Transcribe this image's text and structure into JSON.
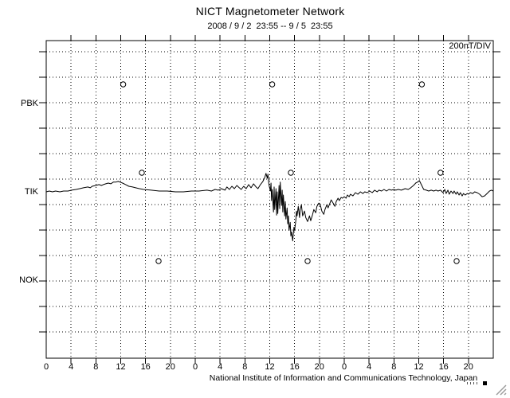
{
  "header": {
    "title": "NICT Magnetometer Network",
    "subtitle": "2008 / 9 / 2  23:55 -- 9 / 5  23:55"
  },
  "plot": {
    "scale_label": "200nT/DIV",
    "caption": "National Institute of Information and Communications Technology, Japan"
  },
  "chart_data": {
    "type": "line",
    "title": "NICT Magnetometer Network",
    "time_range_label": "2008 / 9 / 2  23:55 -- 9 / 5  23:55",
    "scale": {
      "nT_per_division": 200,
      "label": "200nT/DIV"
    },
    "grid": {
      "on": true,
      "style": "dotted"
    },
    "x_axis": {
      "unit": "hour",
      "hours_total": 72,
      "tick_interval_hours": 4,
      "num_days": 3,
      "day_tick_labels": [
        "0",
        "4",
        "8",
        "12",
        "16",
        "20"
      ]
    },
    "stations": [
      {
        "code": "PBK",
        "baseline_y": 130,
        "has_trace": false
      },
      {
        "code": "TIK",
        "baseline_y": 241,
        "has_trace": true
      },
      {
        "code": "NOK",
        "baseline_y": 352,
        "has_trace": false
      }
    ],
    "circle_markers": {
      "offset_nT": 150,
      "by_station": {
        "PBK": [
          12.4,
          36.4,
          60.5
        ],
        "TIK": [
          15.4,
          39.4,
          63.5
        ],
        "NOK": [
          18.1,
          42.1,
          66.1
        ]
      }
    },
    "series": [
      {
        "name": "TIK magnetic variation",
        "station": "TIK",
        "points_hour_nT": [
          [
            0,
            0
          ],
          [
            0.5,
            6
          ],
          [
            1,
            0
          ],
          [
            1.5,
            6
          ],
          [
            2.2,
            0
          ],
          [
            2.8,
            6
          ],
          [
            3.5,
            6
          ],
          [
            4.1,
            13
          ],
          [
            4.8,
            19
          ],
          [
            5.4,
            25
          ],
          [
            6,
            32
          ],
          [
            6.7,
            38
          ],
          [
            7.1,
            32
          ],
          [
            7.4,
            44
          ],
          [
            8,
            50
          ],
          [
            8.5,
            57
          ],
          [
            8.9,
            50
          ],
          [
            9.2,
            57
          ],
          [
            9.6,
            63
          ],
          [
            10,
            69
          ],
          [
            10.4,
            63
          ],
          [
            10.8,
            76
          ],
          [
            11.2,
            76
          ],
          [
            11.6,
            82
          ],
          [
            11.9,
            76
          ],
          [
            12.3,
            69
          ],
          [
            12.8,
            57
          ],
          [
            13.3,
            44
          ],
          [
            13.9,
            38
          ],
          [
            14.4,
            32
          ],
          [
            15,
            25
          ],
          [
            15.7,
            19
          ],
          [
            16.9,
            13
          ],
          [
            18.2,
            6
          ],
          [
            19.5,
            6
          ],
          [
            20.8,
            0
          ],
          [
            22.1,
            0
          ],
          [
            23.4,
            6
          ],
          [
            24.6,
            6
          ],
          [
            25.9,
            13
          ],
          [
            26.6,
            6
          ],
          [
            27.2,
            19
          ],
          [
            27.7,
            13
          ],
          [
            28.2,
            25
          ],
          [
            28.8,
            13
          ],
          [
            29.1,
            38
          ],
          [
            29.5,
            19
          ],
          [
            29.9,
            44
          ],
          [
            30.3,
            25
          ],
          [
            30.7,
            50
          ],
          [
            31.1,
            32
          ],
          [
            31.4,
            19
          ],
          [
            31.8,
            44
          ],
          [
            32.2,
            25
          ],
          [
            32.6,
            57
          ],
          [
            33,
            32
          ],
          [
            33.4,
            63
          ],
          [
            33.8,
            38
          ],
          [
            34.1,
            25
          ],
          [
            34.5,
            57
          ],
          [
            34.9,
            82
          ],
          [
            35.2,
            114
          ],
          [
            35.4,
            145
          ],
          [
            35.6,
            107
          ],
          [
            35.7,
            139
          ],
          [
            35.8,
            88
          ],
          [
            35.9,
            50
          ],
          [
            36.1,
            6
          ],
          [
            36.2,
            69
          ],
          [
            36.3,
            -69
          ],
          [
            36.4,
            19
          ],
          [
            36.6,
            -158
          ],
          [
            36.7,
            38
          ],
          [
            36.8,
            -139
          ],
          [
            37,
            25
          ],
          [
            37.1,
            -183
          ],
          [
            37.2,
            0
          ],
          [
            37.3,
            -170
          ],
          [
            37.5,
            50
          ],
          [
            37.6,
            -132
          ],
          [
            37.7,
            76
          ],
          [
            37.9,
            -107
          ],
          [
            38,
            13
          ],
          [
            38.1,
            -158
          ],
          [
            38.2,
            -25
          ],
          [
            38.4,
            -189
          ],
          [
            38.5,
            -76
          ],
          [
            38.6,
            -214
          ],
          [
            38.8,
            -126
          ],
          [
            38.9,
            -252
          ],
          [
            39,
            -189
          ],
          [
            39.1,
            -303
          ],
          [
            39.3,
            -240
          ],
          [
            39.4,
            -347
          ],
          [
            39.5,
            -315
          ],
          [
            39.7,
            -385
          ],
          [
            39.8,
            -328
          ],
          [
            39.9,
            -278
          ],
          [
            40,
            -303
          ],
          [
            40.2,
            -227
          ],
          [
            40.3,
            -151
          ],
          [
            40.4,
            -189
          ],
          [
            40.6,
            -114
          ],
          [
            40.7,
            -158
          ],
          [
            40.8,
            -202
          ],
          [
            40.9,
            -139
          ],
          [
            41.1,
            -101
          ],
          [
            41.2,
            -145
          ],
          [
            41.3,
            -189
          ],
          [
            41.6,
            -151
          ],
          [
            41.8,
            -202
          ],
          [
            42.1,
            -233
          ],
          [
            42.4,
            -189
          ],
          [
            42.6,
            -227
          ],
          [
            42.9,
            -177
          ],
          [
            43.1,
            -139
          ],
          [
            43.4,
            -164
          ],
          [
            43.6,
            -114
          ],
          [
            43.9,
            -88
          ],
          [
            44.2,
            -114
          ],
          [
            44.4,
            -151
          ],
          [
            44.7,
            -177
          ],
          [
            44.9,
            -139
          ],
          [
            45.2,
            -101
          ],
          [
            45.4,
            -126
          ],
          [
            45.7,
            -88
          ],
          [
            45.9,
            -63
          ],
          [
            46.2,
            -88
          ],
          [
            46.5,
            -114
          ],
          [
            46.7,
            -76
          ],
          [
            47,
            -50
          ],
          [
            47.2,
            -69
          ],
          [
            47.5,
            -44
          ],
          [
            47.7,
            -50
          ],
          [
            48,
            -38
          ],
          [
            48.3,
            -50
          ],
          [
            48.5,
            -25
          ],
          [
            48.8,
            -38
          ],
          [
            49,
            -19
          ],
          [
            49.4,
            -32
          ],
          [
            49.8,
            -6
          ],
          [
            50.2,
            -19
          ],
          [
            50.6,
            0
          ],
          [
            51,
            -13
          ],
          [
            51.3,
            0
          ],
          [
            51.7,
            -6
          ],
          [
            52.1,
            6
          ],
          [
            52.5,
            -6
          ],
          [
            52.9,
            13
          ],
          [
            53.3,
            0
          ],
          [
            53.6,
            13
          ],
          [
            54,
            6
          ],
          [
            54.4,
            19
          ],
          [
            54.8,
            6
          ],
          [
            55.2,
            19
          ],
          [
            55.6,
            13
          ],
          [
            56,
            19
          ],
          [
            56.3,
            13
          ],
          [
            56.7,
            19
          ],
          [
            57.2,
            13
          ],
          [
            57.8,
            25
          ],
          [
            58.3,
            19
          ],
          [
            58.7,
            32
          ],
          [
            59,
            44
          ],
          [
            59.3,
            57
          ],
          [
            59.5,
            69
          ],
          [
            59.8,
            76
          ],
          [
            60.1,
            88
          ],
          [
            60.3,
            69
          ],
          [
            60.6,
            38
          ],
          [
            60.8,
            19
          ],
          [
            61.2,
            13
          ],
          [
            61.6,
            6
          ],
          [
            62,
            13
          ],
          [
            62.4,
            6
          ],
          [
            62.8,
            13
          ],
          [
            63.1,
            6
          ],
          [
            63.5,
            13
          ],
          [
            63.9,
            -6
          ],
          [
            64.2,
            19
          ],
          [
            64.4,
            -13
          ],
          [
            64.7,
            13
          ],
          [
            64.9,
            -19
          ],
          [
            65.2,
            6
          ],
          [
            65.5,
            -13
          ],
          [
            65.7,
            6
          ],
          [
            66,
            -19
          ],
          [
            66.2,
            0
          ],
          [
            66.5,
            -25
          ],
          [
            66.7,
            -6
          ],
          [
            67,
            -32
          ],
          [
            67.2,
            -13
          ],
          [
            67.5,
            -25
          ],
          [
            67.8,
            -13
          ],
          [
            68,
            -19
          ],
          [
            68.3,
            -6
          ],
          [
            68.7,
            -13
          ],
          [
            69,
            0
          ],
          [
            69.4,
            -6
          ],
          [
            69.8,
            -19
          ],
          [
            70.2,
            -38
          ],
          [
            70.6,
            -32
          ],
          [
            71,
            -13
          ],
          [
            71.4,
            6
          ],
          [
            71.7,
            13
          ],
          [
            72,
            6
          ]
        ]
      }
    ]
  }
}
